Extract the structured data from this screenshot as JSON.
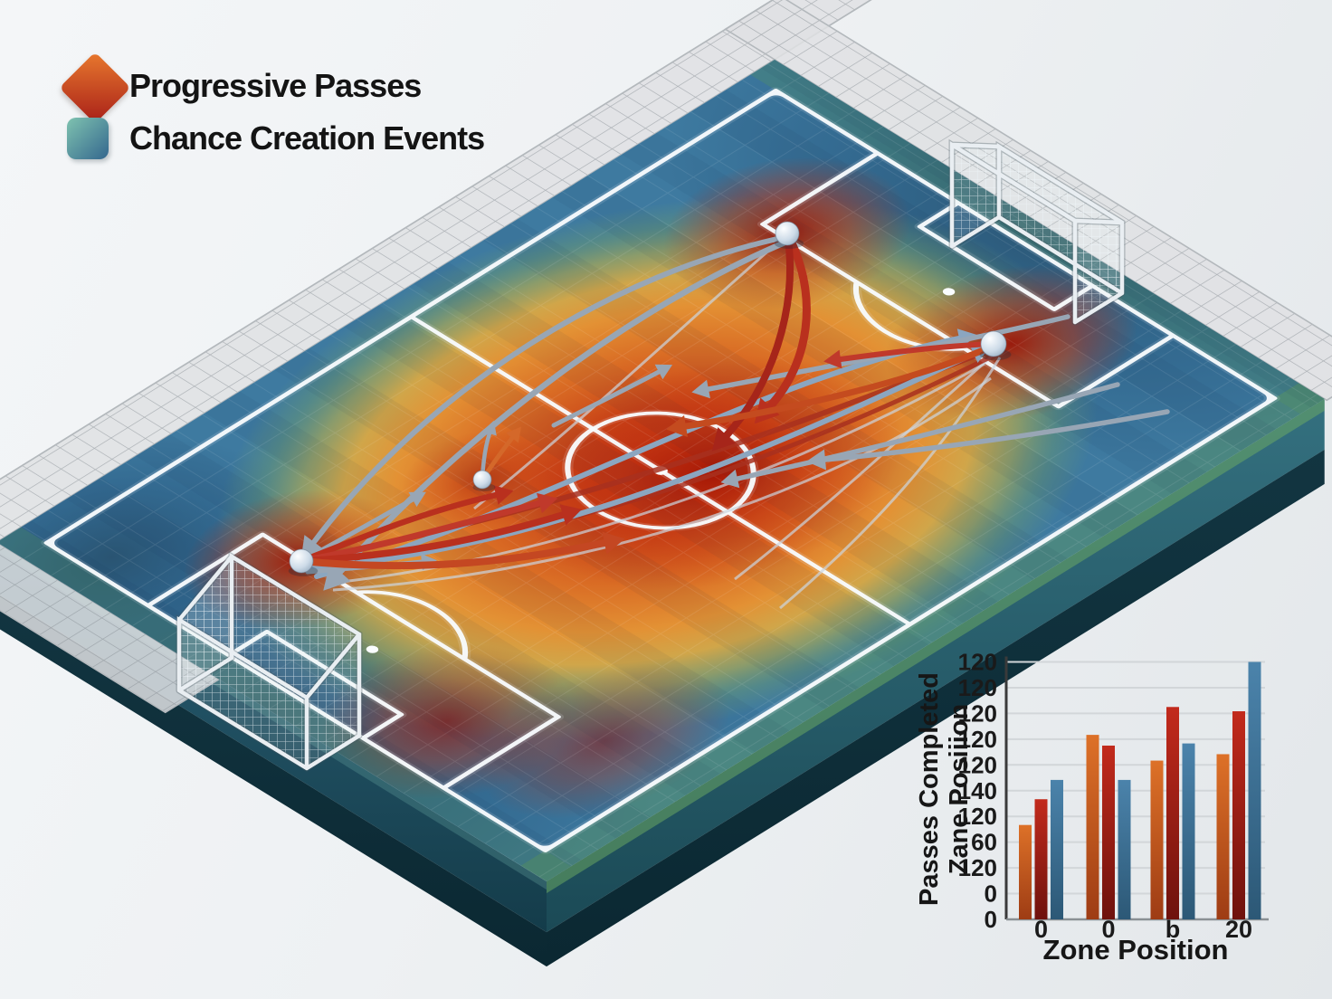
{
  "legend": {
    "items": [
      {
        "label": "Progressive Passes",
        "shape": "diamond",
        "gradient": [
          "#e8792e",
          "#a81f18"
        ]
      },
      {
        "label": "Chance Creation Events",
        "shape": "rounded-square",
        "gradient": [
          "#7fc3b0",
          "#34678e"
        ]
      }
    ]
  },
  "pitch": {
    "type": "isometric-heatmap-pitch",
    "heat_scale": [
      "#2c5f86",
      "#3e7aa0",
      "#6f9c6b",
      "#cdb052",
      "#e39134",
      "#c94418",
      "#9e0f02"
    ],
    "arrow_colors": {
      "progressive": "#b9301e",
      "chance": "#98a6b5",
      "chance_head": "#8ba6c0"
    },
    "line_color": "#f8fbfd",
    "event_node_count": 4,
    "goal_count": 2
  },
  "chart_data": {
    "type": "bar",
    "title": "",
    "xlabel": "Zone Position",
    "ylabel_rotated_lines": [
      "Passes Completed",
      "Zane Posiiion"
    ],
    "categories": [
      "0",
      "0",
      "b",
      "20"
    ],
    "y_tick_labels_top_to_bottom": [
      "120",
      "120",
      "120",
      "120",
      "120",
      "140",
      "120",
      "60",
      "120",
      "0",
      "0"
    ],
    "ylim": [
      0,
      120
    ],
    "grid": true,
    "legend_position": "none",
    "series": [
      {
        "name": "orange",
        "color": "#dd7128",
        "color_dark": "#9e3c14",
        "values": [
          44,
          86,
          74,
          77
        ]
      },
      {
        "name": "red",
        "color": "#c22a1c",
        "color_dark": "#6e120d",
        "values": [
          56,
          81,
          99,
          97
        ]
      },
      {
        "name": "blue",
        "color": "#4b83ab",
        "color_dark": "#2c5876",
        "values": [
          65,
          65,
          82,
          120
        ]
      }
    ]
  }
}
